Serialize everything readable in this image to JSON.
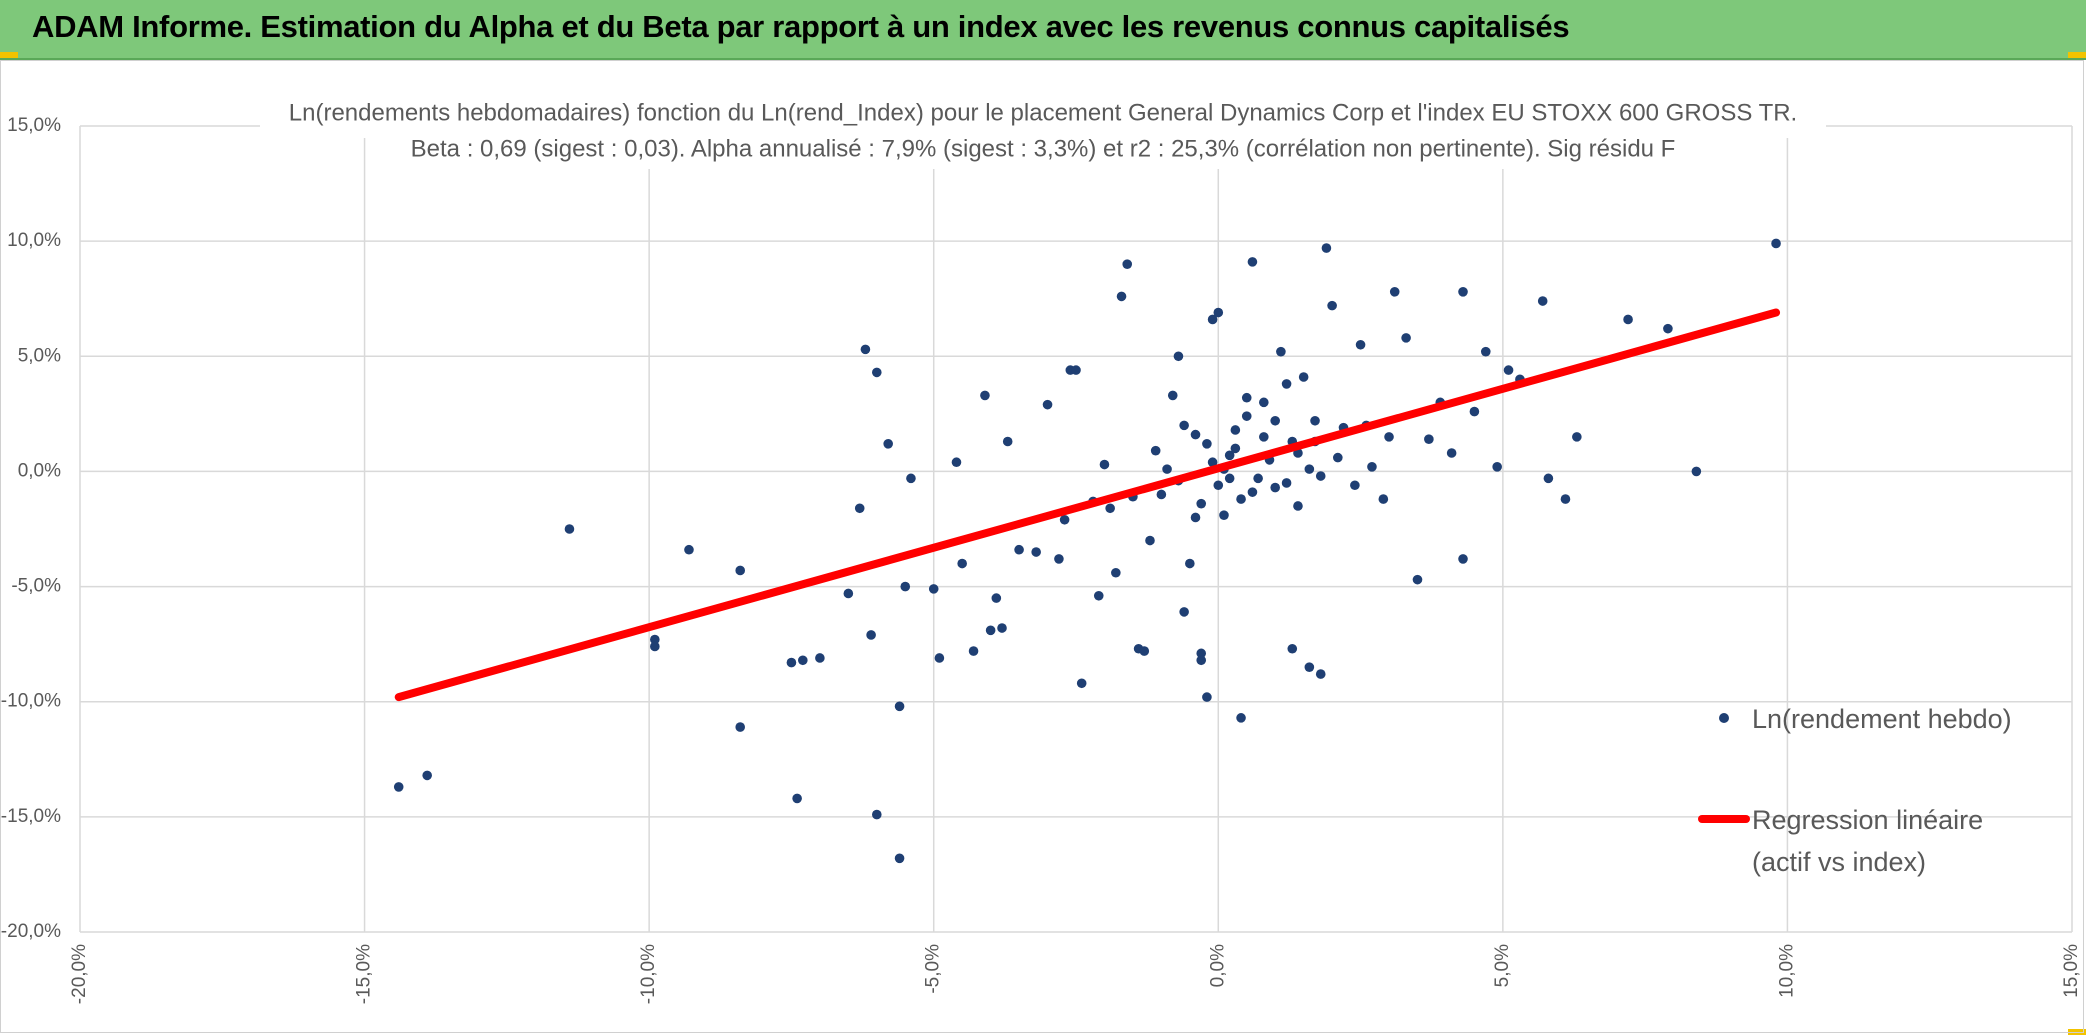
{
  "header": {
    "title": "ADAM Informe. Estimation du Alpha et du Beta par rapport à un index avec les revenus connus capitalisés"
  },
  "colors": {
    "banner": "#7ec87a",
    "points": "#1f3f73",
    "regression": "#ff0000",
    "grid": "#d9d9d9",
    "text": "#595959"
  },
  "chart_data": {
    "type": "scatter",
    "title_line1": "Ln(rendements hebdomadaires) fonction du Ln(rend_Index) pour le placement General Dynamics Corp et l'index EU STOXX 600 GROSS TR.",
    "title_line2": "Beta : 0,69 (sigest : 0,03). Alpha annualisé : 7,9% (sigest : 3,3%) et r2 : 25,3% (corrélation non pertinente). Sig résidu F",
    "xlabel": "",
    "ylabel": "",
    "xlim": [
      -0.2,
      0.15
    ],
    "ylim": [
      -0.2,
      0.15
    ],
    "x_ticks": [
      -0.2,
      -0.15,
      -0.1,
      -0.05,
      0.0,
      0.05,
      0.1,
      0.15
    ],
    "x_tick_labels": [
      "-20,0%",
      "-15,0%",
      "-10,0%",
      "-5,0%",
      "0,0%",
      "5,0%",
      "10,0%",
      "15,0%"
    ],
    "y_ticks": [
      0.15,
      0.1,
      0.05,
      0.0,
      -0.05,
      -0.1,
      -0.15,
      -0.2
    ],
    "y_tick_labels": [
      "15,0%",
      "10,0%",
      "5,0%",
      "0,0%",
      "-5,0%",
      "-10,0%",
      "-15,0%",
      "-20,0%"
    ],
    "grid": true,
    "legend_position": "right",
    "series": [
      {
        "name": "Ln(rendement hebdo)",
        "kind": "scatter",
        "color": "#1f3f73",
        "points": [
          [
            -0.144,
            -0.137
          ],
          [
            -0.139,
            -0.132
          ],
          [
            -0.114,
            -0.025
          ],
          [
            -0.099,
            -0.073
          ],
          [
            -0.099,
            -0.076
          ],
          [
            -0.093,
            -0.034
          ],
          [
            -0.084,
            -0.043
          ],
          [
            -0.084,
            -0.111
          ],
          [
            -0.075,
            -0.083
          ],
          [
            -0.073,
            -0.082
          ],
          [
            -0.07,
            -0.081
          ],
          [
            -0.074,
            -0.142
          ],
          [
            -0.065,
            -0.053
          ],
          [
            -0.062,
            0.053
          ],
          [
            -0.06,
            0.043
          ],
          [
            -0.058,
            0.012
          ],
          [
            -0.063,
            -0.016
          ],
          [
            -0.061,
            -0.071
          ],
          [
            -0.06,
            -0.149
          ],
          [
            -0.056,
            -0.102
          ],
          [
            -0.056,
            -0.168
          ],
          [
            -0.054,
            -0.003
          ],
          [
            -0.055,
            -0.05
          ],
          [
            -0.05,
            -0.051
          ],
          [
            -0.049,
            -0.081
          ],
          [
            -0.046,
            0.004
          ],
          [
            -0.045,
            -0.04
          ],
          [
            -0.043,
            -0.078
          ],
          [
            -0.041,
            0.033
          ],
          [
            -0.04,
            -0.069
          ],
          [
            -0.039,
            -0.055
          ],
          [
            -0.038,
            -0.068
          ],
          [
            -0.037,
            0.013
          ],
          [
            -0.035,
            -0.034
          ],
          [
            -0.032,
            -0.035
          ],
          [
            -0.03,
            0.029
          ],
          [
            -0.028,
            -0.038
          ],
          [
            -0.026,
            0.044
          ],
          [
            -0.025,
            0.044
          ],
          [
            -0.024,
            -0.092
          ],
          [
            -0.022,
            -0.013
          ],
          [
            -0.021,
            -0.054
          ],
          [
            -0.019,
            -0.016
          ],
          [
            -0.018,
            -0.044
          ],
          [
            -0.017,
            0.076
          ],
          [
            -0.016,
            0.09
          ],
          [
            -0.014,
            -0.077
          ],
          [
            -0.013,
            -0.078
          ],
          [
            -0.012,
            -0.03
          ],
          [
            -0.01,
            -0.01
          ],
          [
            -0.009,
            0.001
          ],
          [
            -0.008,
            0.033
          ],
          [
            -0.007,
            0.05
          ],
          [
            -0.006,
            -0.061
          ],
          [
            -0.005,
            -0.04
          ],
          [
            -0.004,
            0.016
          ],
          [
            -0.003,
            -0.079
          ],
          [
            -0.003,
            -0.082
          ],
          [
            -0.002,
            -0.098
          ],
          [
            -0.001,
            0.066
          ],
          [
            0.0,
            0.069
          ],
          [
            0.0,
            -0.006
          ],
          [
            -0.002,
            0.012
          ],
          [
            -0.004,
            -0.02
          ],
          [
            -0.006,
            0.02
          ],
          [
            0.001,
            0.001
          ],
          [
            0.002,
            0.007
          ],
          [
            0.003,
            0.018
          ],
          [
            0.004,
            -0.012
          ],
          [
            0.005,
            0.024
          ],
          [
            0.006,
            0.091
          ],
          [
            0.007,
            -0.003
          ],
          [
            0.008,
            0.03
          ],
          [
            0.009,
            0.005
          ],
          [
            0.01,
            -0.007
          ],
          [
            0.011,
            0.052
          ],
          [
            0.012,
            0.038
          ],
          [
            0.013,
            0.013
          ],
          [
            0.014,
            -0.015
          ],
          [
            0.015,
            0.041
          ],
          [
            0.016,
            0.001
          ],
          [
            0.017,
            0.022
          ],
          [
            0.018,
            -0.002
          ],
          [
            0.019,
            0.097
          ],
          [
            0.018,
            -0.088
          ],
          [
            0.016,
            -0.085
          ],
          [
            0.013,
            -0.077
          ],
          [
            0.004,
            -0.107
          ],
          [
            0.02,
            0.072
          ],
          [
            0.022,
            0.019
          ],
          [
            0.024,
            -0.006
          ],
          [
            0.025,
            0.055
          ],
          [
            0.027,
            0.002
          ],
          [
            0.029,
            -0.012
          ],
          [
            0.031,
            0.078
          ],
          [
            0.033,
            0.058
          ],
          [
            0.035,
            -0.047
          ],
          [
            0.037,
            0.014
          ],
          [
            0.039,
            0.03
          ],
          [
            0.041,
            0.008
          ],
          [
            0.043,
            0.078
          ],
          [
            0.043,
            -0.038
          ],
          [
            0.045,
            0.026
          ],
          [
            0.047,
            0.052
          ],
          [
            0.049,
            0.002
          ],
          [
            0.051,
            0.044
          ],
          [
            0.053,
            0.04
          ],
          [
            0.057,
            0.074
          ],
          [
            0.058,
            -0.003
          ],
          [
            0.061,
            -0.012
          ],
          [
            0.063,
            0.015
          ],
          [
            0.072,
            0.066
          ],
          [
            0.079,
            0.062
          ],
          [
            0.084,
            0.0
          ],
          [
            0.098,
            0.099
          ],
          [
            0.002,
            -0.003
          ],
          [
            -0.001,
            0.004
          ],
          [
            0.003,
            0.01
          ],
          [
            0.006,
            -0.009
          ],
          [
            -0.003,
            -0.014
          ],
          [
            0.008,
            0.015
          ],
          [
            0.01,
            0.022
          ],
          [
            -0.011,
            0.009
          ],
          [
            0.012,
            -0.005
          ],
          [
            -0.007,
            -0.004
          ],
          [
            0.014,
            0.008
          ],
          [
            0.001,
            -0.019
          ],
          [
            0.005,
            0.032
          ],
          [
            -0.015,
            -0.011
          ],
          [
            0.017,
            0.013
          ],
          [
            0.021,
            0.006
          ],
          [
            -0.02,
            0.003
          ],
          [
            0.026,
            0.02
          ],
          [
            -0.027,
            -0.021
          ],
          [
            0.03,
            0.015
          ]
        ]
      },
      {
        "name": "Regression linéaire (actif vs index)",
        "kind": "line",
        "color": "#ff0000",
        "x": [
          -0.144,
          0.098
        ],
        "y": [
          -0.098,
          0.069
        ]
      }
    ]
  },
  "legend": {
    "scatter_label": "Ln(rendement hebdo)",
    "line_label_1": "Regression linéaire",
    "line_label_2": "(actif vs index)"
  }
}
